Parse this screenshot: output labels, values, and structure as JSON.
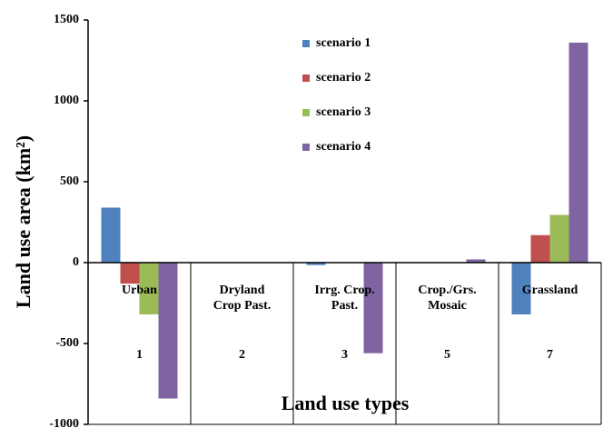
{
  "chart_data": {
    "type": "bar",
    "y_label": "Land use area (km²)",
    "x_label": "Land use types",
    "categories": [
      [
        "Urban"
      ],
      [
        "Dryland",
        "Crop Past."
      ],
      [
        "Irrg. Crop.",
        "Past."
      ],
      [
        "Crop./Grs.",
        "Mosaic"
      ],
      [
        "Grassland"
      ]
    ],
    "category_codes": [
      "1",
      "2",
      "3",
      "5",
      "7"
    ],
    "series": [
      {
        "name": "scenario 1",
        "color": "#4f81bd",
        "values": [
          340,
          0,
          -15,
          0,
          -320
        ]
      },
      {
        "name": "scenario 2",
        "color": "#c0504d",
        "values": [
          -130,
          0,
          0,
          0,
          170
        ]
      },
      {
        "name": "scenario 3",
        "color": "#9bbb59",
        "values": [
          -320,
          0,
          0,
          0,
          295
        ]
      },
      {
        "name": "scenario 4",
        "color": "#8064a2",
        "values": [
          -840,
          0,
          -560,
          20,
          1360
        ]
      }
    ],
    "ylim": [
      -1000,
      1500
    ],
    "yticks": [
      -1000,
      -500,
      0,
      500,
      1000,
      1500
    ],
    "legend": "top"
  }
}
